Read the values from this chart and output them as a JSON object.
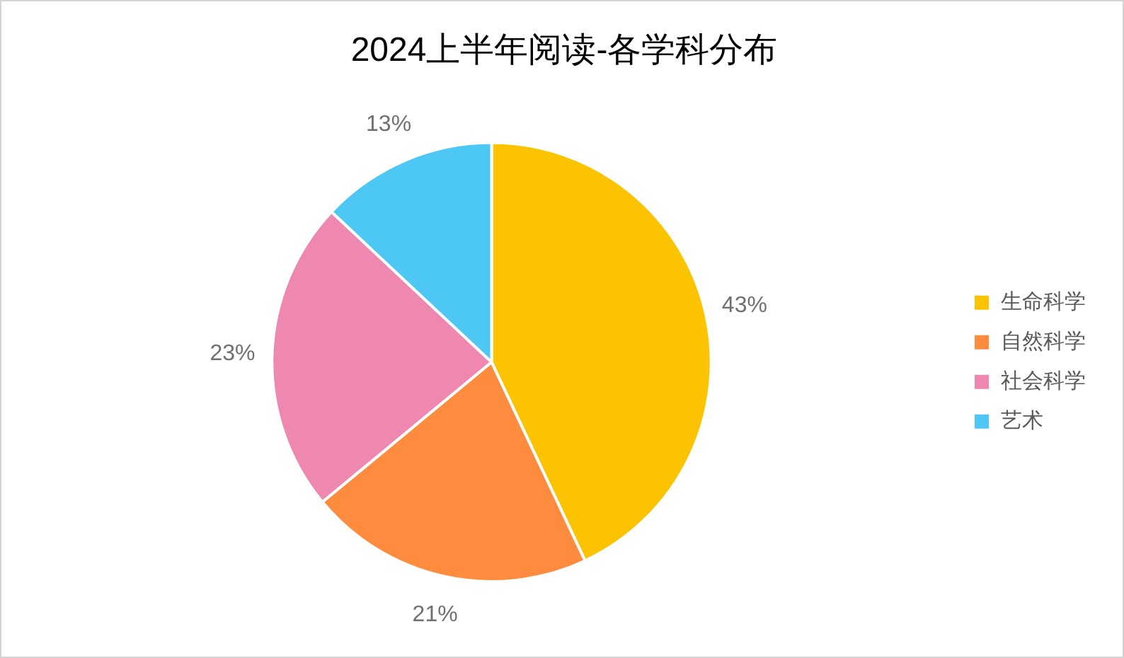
{
  "chart_data": {
    "type": "pie",
    "title": "2024上半年阅读-各学科分布",
    "categories": [
      "生命科学",
      "自然科学",
      "社会科学",
      "艺术"
    ],
    "values": [
      43,
      21,
      23,
      13
    ],
    "colors": [
      "#fbc300",
      "#fd8c3f",
      "#ef88b0",
      "#4dc8f4"
    ],
    "value_labels": [
      "43%",
      "21%",
      "23%",
      "13%"
    ],
    "legend": "right"
  }
}
